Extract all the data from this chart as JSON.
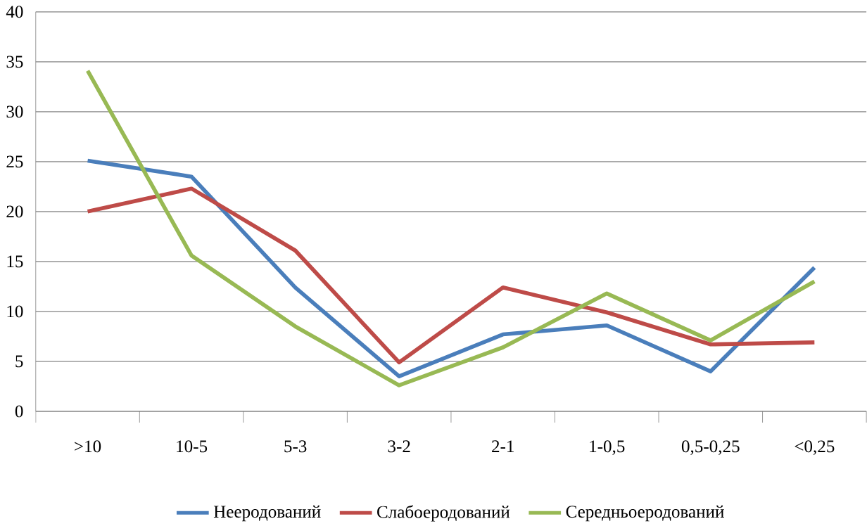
{
  "chart_data": {
    "type": "line",
    "categories": [
      ">10",
      "10-5",
      "5-3",
      "3-2",
      "2-1",
      "1-0,5",
      "0,5-0,25",
      "<0,25"
    ],
    "series": [
      {
        "name": "Нееродований",
        "color": "#4a7ebb",
        "values": [
          25.1,
          23.5,
          12.4,
          3.5,
          7.7,
          8.6,
          4.0,
          14.4
        ]
      },
      {
        "name": "Слабоеродований",
        "color": "#be4b48",
        "values": [
          20.0,
          22.3,
          16.1,
          4.9,
          12.4,
          9.9,
          6.7,
          6.9
        ]
      },
      {
        "name": "Середньоеродований",
        "color": "#98b954",
        "values": [
          34.1,
          15.6,
          8.5,
          2.6,
          6.4,
          11.8,
          7.1,
          13.0
        ]
      }
    ],
    "ylim": [
      0,
      40
    ],
    "yticks": [
      0,
      5,
      10,
      15,
      20,
      25,
      30,
      35,
      40
    ],
    "grid": "y",
    "legend": "bottom",
    "marker": "none",
    "line_style": "solid"
  }
}
